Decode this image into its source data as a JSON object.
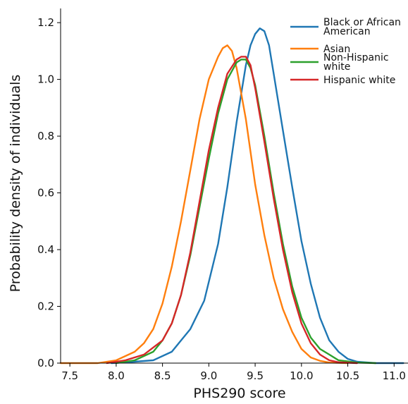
{
  "chart_data": {
    "type": "line",
    "xlabel": "PHS290 score",
    "ylabel": "Probability density of individuals",
    "xlim": [
      7.4,
      11.15
    ],
    "ylim": [
      0,
      1.25
    ],
    "xticks": [
      7.5,
      8.0,
      8.5,
      9.0,
      9.5,
      10.0,
      10.5,
      11.0
    ],
    "xtick_labels": [
      "7.5",
      "8.0",
      "8.5",
      "9.0",
      "9.5",
      "10.0",
      "10.5",
      "11.0"
    ],
    "yticks": [
      0.0,
      0.2,
      0.4,
      0.6,
      0.8,
      1.0,
      1.2
    ],
    "ytick_labels": [
      "0.0",
      "0.2",
      "0.4",
      "0.6",
      "0.8",
      "1.0",
      "1.2"
    ],
    "grid": false,
    "legend_position": "top-right",
    "series": [
      {
        "name": "Black or African American",
        "name_lines": [
          "Black or African",
          "American"
        ],
        "color": "#1f77b4",
        "x": [
          7.95,
          8.2,
          8.4,
          8.6,
          8.8,
          8.95,
          9.1,
          9.2,
          9.3,
          9.4,
          9.45,
          9.5,
          9.55,
          9.6,
          9.65,
          9.7,
          9.8,
          9.9,
          10.0,
          10.1,
          10.2,
          10.3,
          10.4,
          10.5,
          10.6,
          10.8,
          11.1
        ],
        "y": [
          0.0,
          0.005,
          0.01,
          0.04,
          0.12,
          0.22,
          0.42,
          0.62,
          0.85,
          1.05,
          1.12,
          1.16,
          1.18,
          1.17,
          1.12,
          1.02,
          0.82,
          0.62,
          0.43,
          0.28,
          0.16,
          0.08,
          0.04,
          0.015,
          0.005,
          0.0,
          0.0
        ]
      },
      {
        "name": "Asian",
        "name_lines": [
          "Asian"
        ],
        "color": "#ff7f0e",
        "x": [
          7.4,
          7.8,
          8.0,
          8.2,
          8.3,
          8.4,
          8.5,
          8.6,
          8.7,
          8.8,
          8.9,
          9.0,
          9.1,
          9.15,
          9.2,
          9.25,
          9.3,
          9.4,
          9.5,
          9.6,
          9.7,
          9.8,
          9.9,
          10.0,
          10.1,
          10.2,
          10.3,
          10.5
        ],
        "y": [
          0.0,
          0.0,
          0.01,
          0.04,
          0.07,
          0.12,
          0.21,
          0.34,
          0.5,
          0.68,
          0.86,
          1.0,
          1.08,
          1.11,
          1.12,
          1.1,
          1.04,
          0.86,
          0.63,
          0.45,
          0.3,
          0.19,
          0.11,
          0.05,
          0.02,
          0.008,
          0.002,
          0.0
        ]
      },
      {
        "name": "Non-Hispanic white",
        "name_lines": [
          "Non-Hispanic",
          "white"
        ],
        "color": "#2ca02c",
        "x": [
          8.0,
          8.2,
          8.4,
          8.5,
          8.6,
          8.7,
          8.8,
          8.9,
          9.0,
          9.1,
          9.2,
          9.3,
          9.35,
          9.4,
          9.45,
          9.5,
          9.6,
          9.7,
          9.8,
          9.9,
          10.0,
          10.1,
          10.2,
          10.3,
          10.4,
          10.6,
          10.8
        ],
        "y": [
          0.0,
          0.01,
          0.04,
          0.08,
          0.14,
          0.24,
          0.38,
          0.55,
          0.72,
          0.88,
          1.0,
          1.06,
          1.07,
          1.07,
          1.04,
          0.98,
          0.8,
          0.6,
          0.42,
          0.27,
          0.16,
          0.09,
          0.05,
          0.03,
          0.01,
          0.002,
          0.0
        ]
      },
      {
        "name": "Hispanic white",
        "name_lines": [
          "Hispanic white"
        ],
        "color": "#d62728",
        "x": [
          7.9,
          8.1,
          8.3,
          8.5,
          8.6,
          8.7,
          8.8,
          8.9,
          9.0,
          9.1,
          9.2,
          9.3,
          9.35,
          9.4,
          9.45,
          9.5,
          9.6,
          9.7,
          9.8,
          9.9,
          10.0,
          10.1,
          10.2,
          10.3,
          10.4,
          10.6
        ],
        "y": [
          0.0,
          0.01,
          0.03,
          0.08,
          0.14,
          0.24,
          0.39,
          0.57,
          0.75,
          0.9,
          1.02,
          1.07,
          1.08,
          1.08,
          1.05,
          0.97,
          0.78,
          0.58,
          0.4,
          0.25,
          0.14,
          0.07,
          0.03,
          0.01,
          0.003,
          0.0
        ]
      }
    ]
  }
}
